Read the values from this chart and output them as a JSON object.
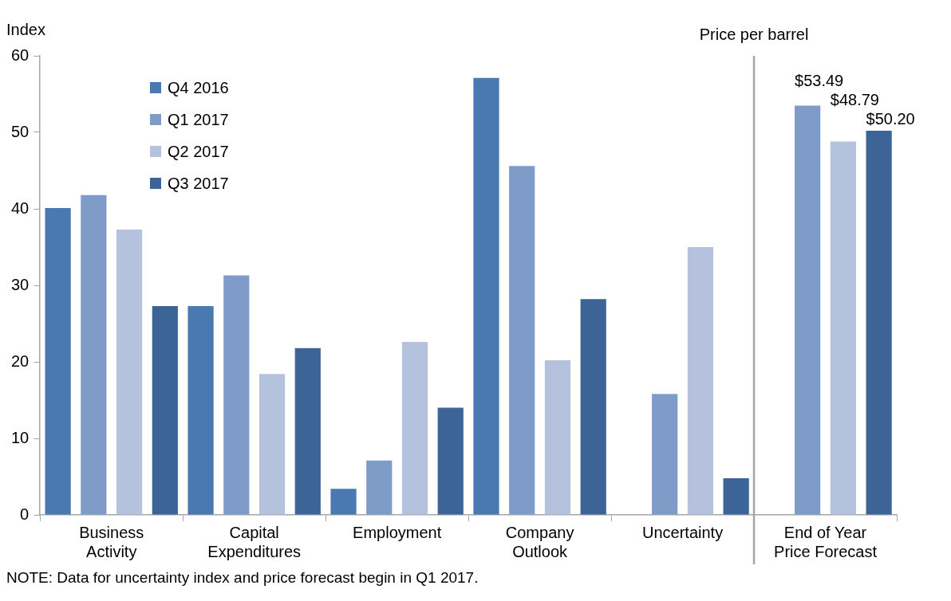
{
  "chart_data": {
    "type": "bar",
    "ylabel": "Index",
    "categories": [
      "Business Activity",
      "Capital Expenditures",
      "Employment",
      "Company Outlook",
      "Uncertainty",
      "End of Year Price Forecast"
    ],
    "series": [
      {
        "name": "Q4 2016",
        "color": "#4a78b0",
        "values": [
          40.1,
          27.3,
          3.4,
          57.1,
          null,
          null
        ]
      },
      {
        "name": "Q1 2017",
        "color": "#7f9bc8",
        "values": [
          41.8,
          31.3,
          7.1,
          45.6,
          15.8,
          53.49
        ],
        "value_labels": [
          null,
          null,
          null,
          null,
          null,
          "$53.49"
        ]
      },
      {
        "name": "Q2 2017",
        "color": "#b4c2de",
        "values": [
          37.3,
          18.4,
          22.6,
          20.2,
          35.0,
          48.79
        ],
        "value_labels": [
          null,
          null,
          null,
          null,
          null,
          "$48.79"
        ]
      },
      {
        "name": "Q3 2017",
        "color": "#3c6496",
        "values": [
          27.3,
          21.8,
          14.0,
          28.2,
          4.8,
          50.2
        ],
        "value_labels": [
          null,
          null,
          null,
          null,
          null,
          "$50.20"
        ]
      }
    ],
    "ylim": [
      0,
      60
    ],
    "yticks": [
      0,
      10,
      20,
      30,
      40,
      50,
      60
    ],
    "grid": false,
    "legend": "top left",
    "annotations": [
      "Price per barrel",
      "NOTE: Data for uncertainty index and price forecast begin in Q1 2017."
    ]
  }
}
